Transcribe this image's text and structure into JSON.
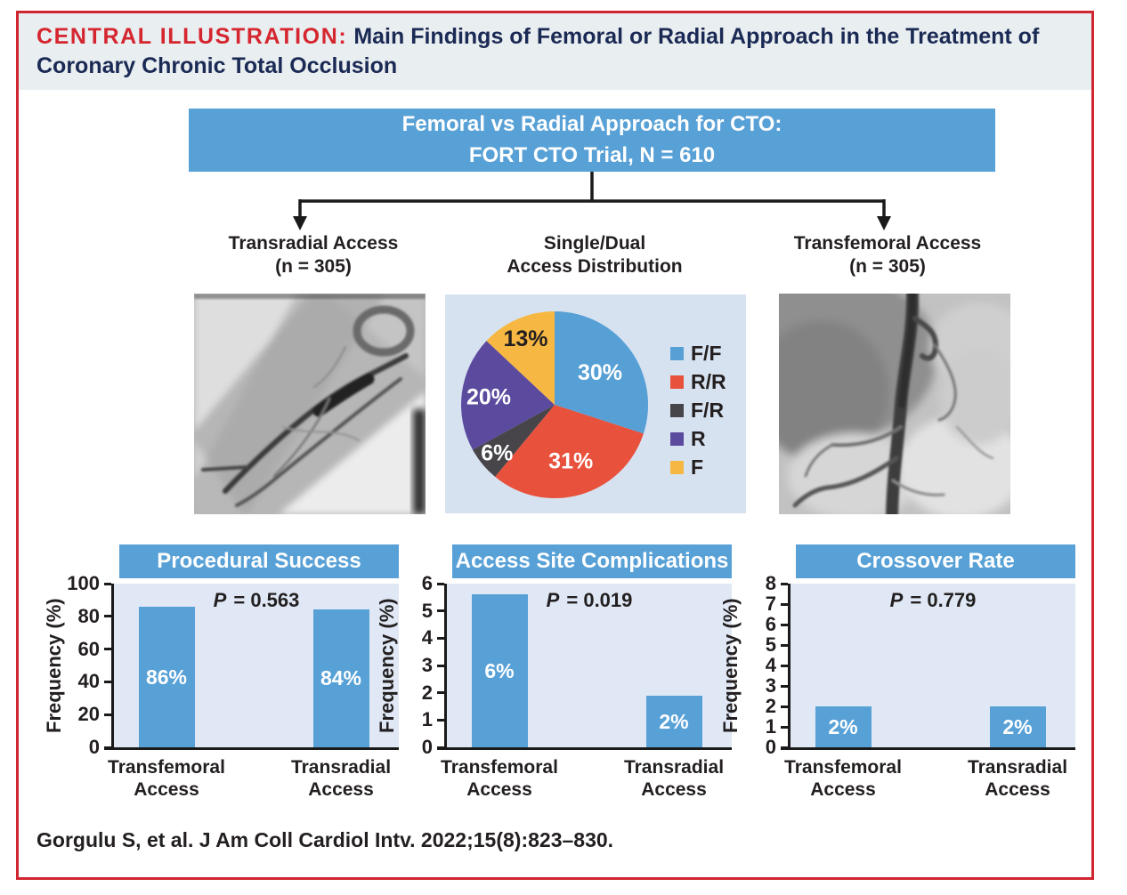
{
  "header": {
    "label": "CENTRAL ILLUSTRATION:",
    "title": "Main Findings of Femoral or Radial Approach in the Treatment of Coronary Chronic Total Occlusion"
  },
  "flowchart": {
    "box": {
      "line1": "Femoral vs Radial Approach for CTO:",
      "line2": "FORT CTO Trial, N = 610"
    },
    "left_label": {
      "line1": "Transradial Access",
      "line2": "(n = 305)"
    },
    "middle_label": {
      "line1": "Single/Dual",
      "line2": "Access Distribution"
    },
    "right_label": {
      "line1": "Transfemoral Access",
      "line2": "(n = 305)"
    }
  },
  "images": {
    "left": {
      "name": "radial-angiogram",
      "description": "Radial artery angiogram"
    },
    "right": {
      "name": "femoral-angiogram",
      "description": "Femoral artery angiogram"
    }
  },
  "chart_data": [
    {
      "id": "access-distribution-pie",
      "type": "pie",
      "title": "Single/Dual Access Distribution",
      "labels": [
        "F/F",
        "R/R",
        "F/R",
        "R",
        "F"
      ],
      "values": [
        30,
        31,
        6,
        20,
        13
      ],
      "slice_labels": [
        "30%",
        "31%",
        "6%",
        "20%",
        "13%"
      ],
      "colors": [
        "#57a0d5",
        "#e8513c",
        "#47454a",
        "#5b4a9e",
        "#f7b843"
      ],
      "slice_label_colors": [
        "#ffffff",
        "#ffffff",
        "#ffffff",
        "#ffffff",
        "#231f20"
      ],
      "label_radius": [
        0.6,
        0.62,
        0.8,
        0.71,
        0.78
      ],
      "start_angle_deg": 0,
      "direction": "clockwise",
      "legend_position": "right"
    },
    {
      "id": "procedural-success",
      "type": "bar",
      "title": "Procedural Success",
      "p_value": "P = 0.563",
      "categories": [
        [
          "Transfemoral",
          "Access"
        ],
        [
          "Transradial",
          "Access"
        ]
      ],
      "values": [
        86,
        84
      ],
      "bar_labels": [
        "86%",
        "84%"
      ],
      "ylabel": "Frequency (%)",
      "ylim": [
        0,
        100
      ],
      "yticks": [
        0,
        20,
        40,
        60,
        80,
        100
      ]
    },
    {
      "id": "access-site-complications",
      "type": "bar",
      "title": "Access Site Complications",
      "p_value": "P = 0.019",
      "categories": [
        [
          "Transfemoral",
          "Access"
        ],
        [
          "Transradial",
          "Access"
        ]
      ],
      "values": [
        5.6,
        1.9
      ],
      "bar_labels": [
        "6%",
        "2%"
      ],
      "ylabel": "Frequency (%)",
      "ylim": [
        0,
        6
      ],
      "yticks": [
        0,
        1,
        2,
        3,
        4,
        5,
        6
      ]
    },
    {
      "id": "crossover-rate",
      "type": "bar",
      "title": "Crossover Rate",
      "p_value": "P = 0.779",
      "categories": [
        [
          "Transfemoral",
          "Access"
        ],
        [
          "Transradial",
          "Access"
        ]
      ],
      "values": [
        2,
        2
      ],
      "bar_labels": [
        "2%",
        "2%"
      ],
      "ylabel": "Frequency (%)",
      "ylim": [
        0,
        8
      ],
      "yticks": [
        0,
        1,
        2,
        3,
        4,
        5,
        6,
        7,
        8
      ]
    }
  ],
  "footer": {
    "citation": "Gorgulu S, et al. J Am Coll Cardiol Intv. 2022;15(8):823–830."
  },
  "colors": {
    "frame_border": "#cf2630",
    "header_red": "#d5262f",
    "header_navy": "#1b2a55",
    "accent_blue": "#58a1d7",
    "plot_bg": "#dfe8f4",
    "pie_panel_bg": "#d7e2f0",
    "title_band_bg": "#e9eef0",
    "text_dark": "#231f20"
  }
}
